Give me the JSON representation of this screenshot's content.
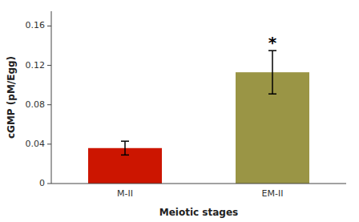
{
  "chart_data": {
    "type": "bar",
    "categories": [
      "M-II",
      "EM-II"
    ],
    "values": [
      0.036,
      0.113
    ],
    "errors": [
      0.007,
      0.022
    ],
    "colors": [
      "#cc1500",
      "#9a9545"
    ],
    "xlabel": "Meiotic stages",
    "ylabel": "cGMP (pM/Egg)",
    "ylim": [
      0,
      0.175
    ],
    "yticks": [
      0,
      0.04,
      0.08,
      0.12,
      0.16
    ],
    "annotations": [
      {
        "text": "*",
        "category": "EM-II"
      }
    ],
    "grid": false
  }
}
